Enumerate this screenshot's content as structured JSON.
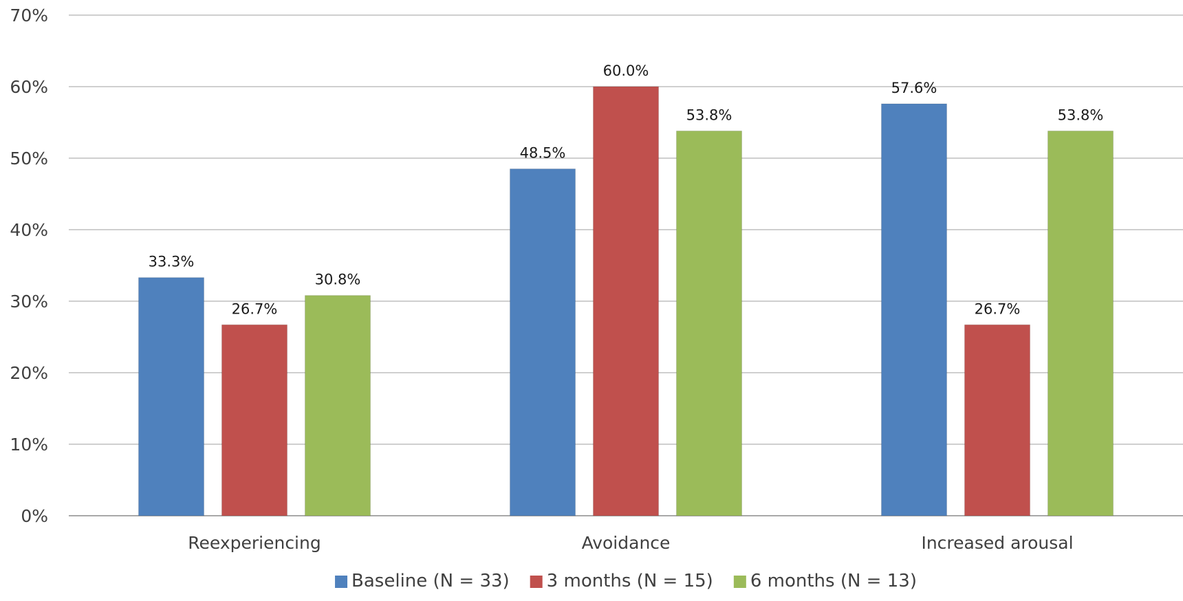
{
  "chart_data": {
    "type": "bar",
    "title": "",
    "xlabel": "",
    "ylabel": "",
    "ylim": [
      0,
      0.7
    ],
    "y_ticks": [
      0,
      0.1,
      0.2,
      0.3,
      0.4,
      0.5,
      0.6,
      0.7
    ],
    "y_tick_labels": [
      "0%",
      "10%",
      "20%",
      "30%",
      "40%",
      "50%",
      "60%",
      "70%"
    ],
    "grid": true,
    "legend_position": "bottom",
    "categories": [
      "Reexperiencing",
      "Avoidance",
      "Increased arousal"
    ],
    "series": [
      {
        "name": "Baseline (N = 33)",
        "color": "#4F81BD",
        "values": [
          0.333,
          0.485,
          0.576
        ],
        "labels": [
          "33.3%",
          "48.5%",
          "57.6%"
        ]
      },
      {
        "name": "3 months (N = 15)",
        "color": "#C0504D",
        "values": [
          0.267,
          0.6,
          0.267
        ],
        "labels": [
          "26.7%",
          "60.0%",
          "26.7%"
        ]
      },
      {
        "name": "6 months (N = 13)",
        "color": "#9BBB59",
        "values": [
          0.308,
          0.538,
          0.538
        ],
        "labels": [
          "30.8%",
          "53.8%",
          "53.8%"
        ]
      }
    ]
  }
}
